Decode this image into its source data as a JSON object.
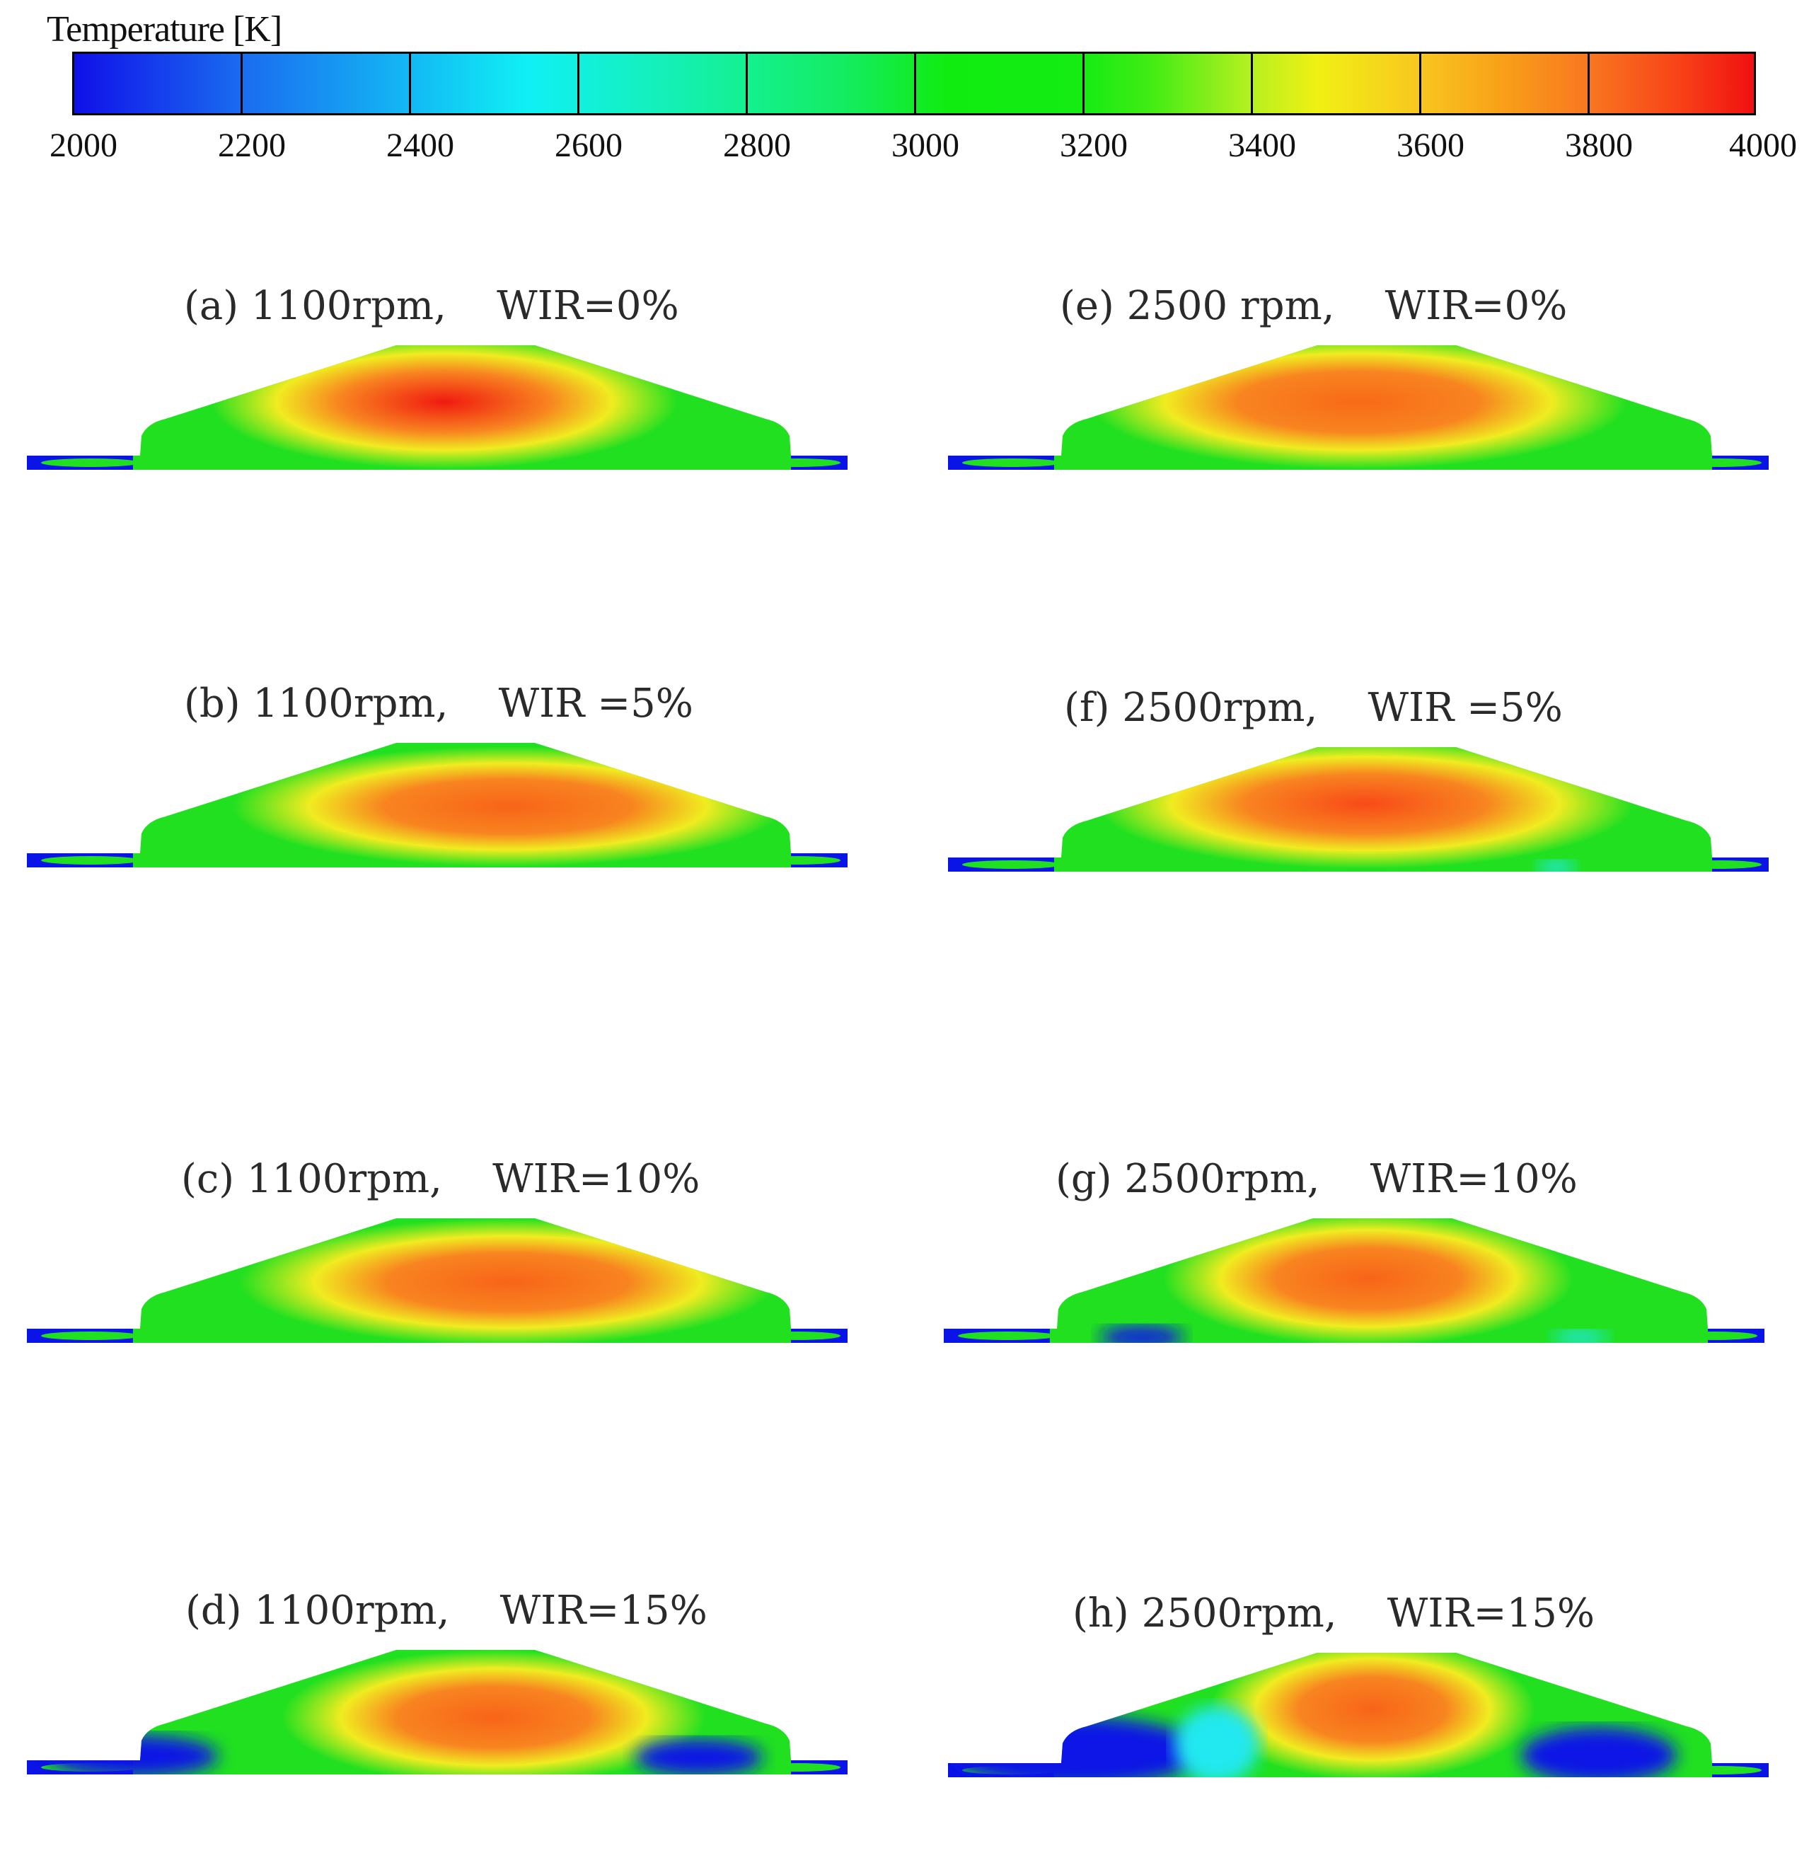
{
  "colorbar": {
    "title": "Temperature [K]",
    "min": 2000,
    "max": 4000,
    "ticks": [
      "2000",
      "2200",
      "2400",
      "2600",
      "2800",
      "3000",
      "3200",
      "3400",
      "3600",
      "3800",
      "4000"
    ]
  },
  "panels": [
    {
      "caption": "(a) 1100rpm,    WIR=0%",
      "rpm": 1100,
      "wir_percent": 0
    },
    {
      "caption": "(b) 1100rpm,    WIR =5%",
      "rpm": 1100,
      "wir_percent": 5
    },
    {
      "caption": "(c) 1100rpm,    WIR=10%",
      "rpm": 1100,
      "wir_percent": 10
    },
    {
      "caption": "(d) 1100rpm,    WIR=15%",
      "rpm": 1100,
      "wir_percent": 15
    },
    {
      "caption": "(e) 2500 rpm,    WIR=0%",
      "rpm": 2500,
      "wir_percent": 0
    },
    {
      "caption": "(f) 2500rpm,    WIR =5%",
      "rpm": 2500,
      "wir_percent": 5
    },
    {
      "caption": "(g) 2500rpm,    WIR=10%",
      "rpm": 2500,
      "wir_percent": 10
    },
    {
      "caption": "(h) 2500rpm,    WIR=15%",
      "rpm": 2500,
      "wir_percent": 15
    }
  ],
  "colors": {
    "hot": "#f01a10",
    "warm": "#f88420",
    "mid": "#f0ec20",
    "cool": "#20e020",
    "cold": "#0a14e6",
    "aqua": "#20e8f0"
  }
}
